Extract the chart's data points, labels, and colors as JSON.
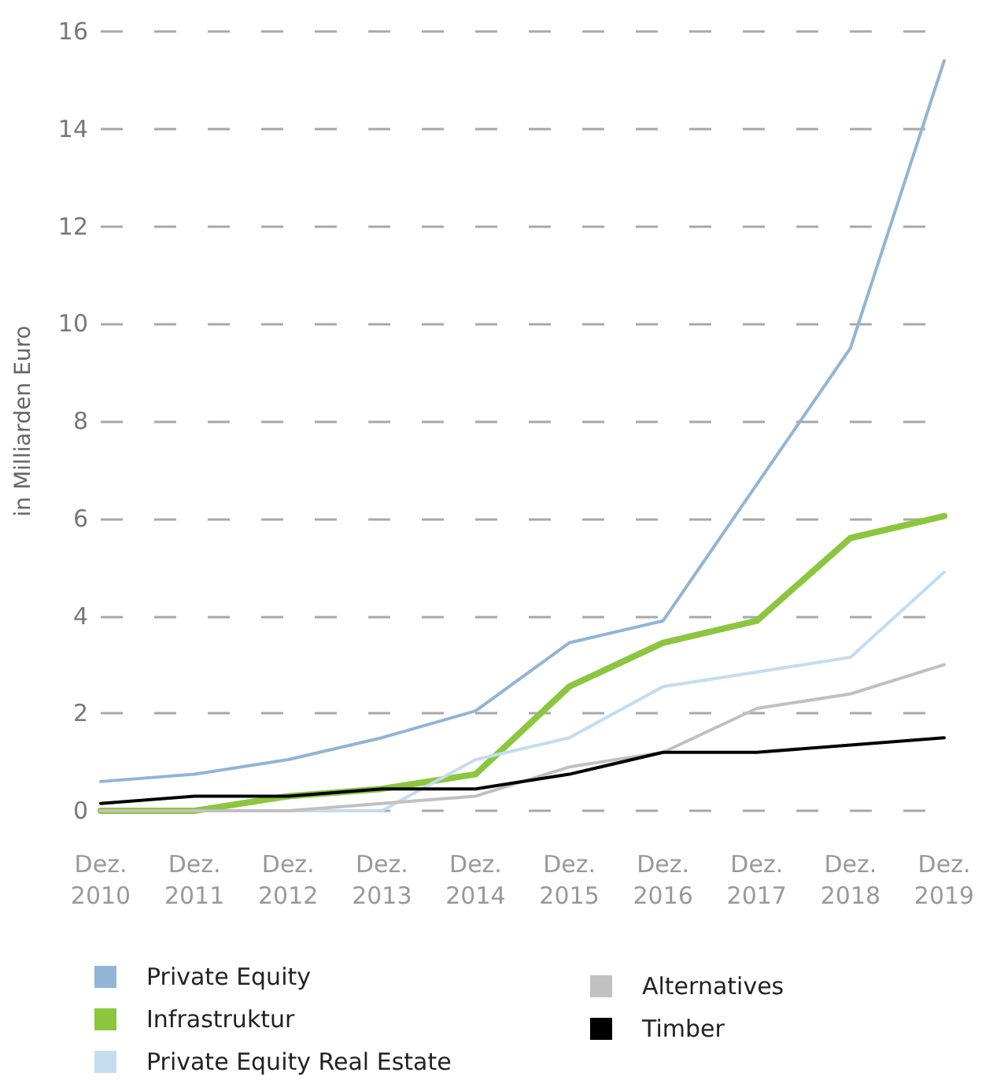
{
  "chart_data": {
    "type": "line",
    "ylabel": "in Milliarden Euro",
    "categories": [
      "Dez.\n2010",
      "Dez.\n2011",
      "Dez.\n2012",
      "Dez.\n2013",
      "Dez.\n2014",
      "Dez.\n2015",
      "Dez.\n2016",
      "Dez.\n2017",
      "Dez.\n2018",
      "Dez.\n2019"
    ],
    "series": [
      {
        "name": "Private Equity",
        "color": "#92b4d6",
        "values": [
          0.6,
          0.75,
          1.05,
          1.5,
          2.05,
          3.45,
          3.9,
          6.7,
          9.5,
          15.4
        ]
      },
      {
        "name": "Infrastruktur",
        "color": "#8cc63e",
        "values": [
          0,
          0,
          0.3,
          0.45,
          0.75,
          2.55,
          3.45,
          3.9,
          5.6,
          6.05
        ]
      },
      {
        "name": "Private Equity Real Estate",
        "color": "#c4dcef",
        "values": [
          0,
          0,
          0,
          0,
          1.05,
          1.5,
          2.55,
          2.85,
          3.15,
          4.9
        ]
      },
      {
        "name": "Alternatives",
        "color": "#c0c0c0",
        "values": [
          0,
          0,
          0,
          0.15,
          0.3,
          0.9,
          1.2,
          2.1,
          2.4,
          3.0
        ]
      },
      {
        "name": "Timber",
        "color": "#000000",
        "values": [
          0.15,
          0.3,
          0.3,
          0.45,
          0.45,
          0.75,
          1.2,
          1.2,
          1.35,
          1.5
        ]
      }
    ],
    "ylim": [
      0,
      16
    ],
    "yticks": [
      0,
      2,
      4,
      6,
      8,
      10,
      12,
      14,
      16
    ],
    "grid": "y",
    "legend": "bottom",
    "marker": "none",
    "line_style": "solid"
  }
}
